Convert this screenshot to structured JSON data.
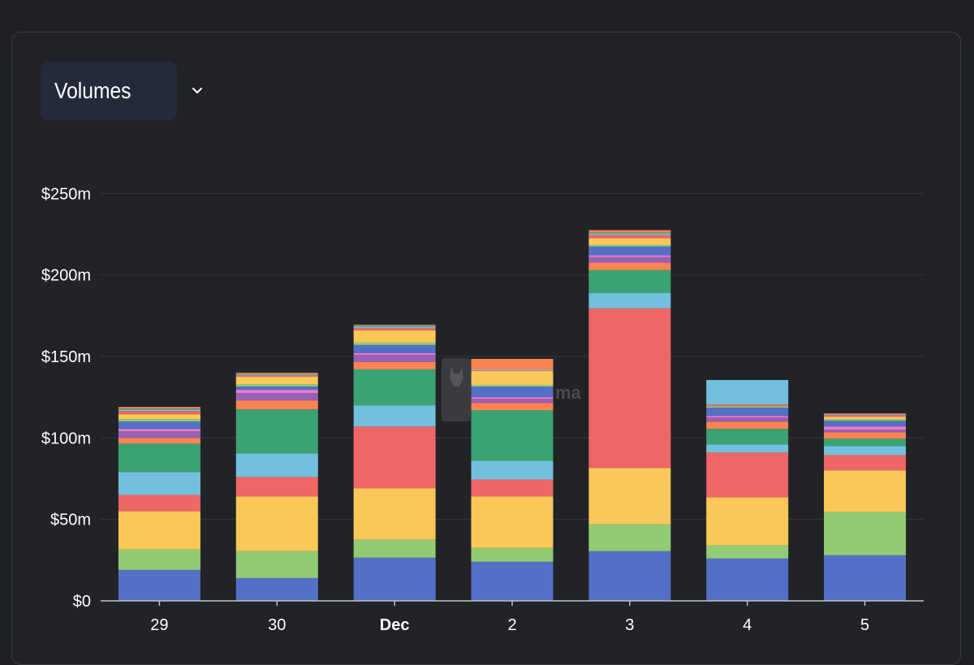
{
  "selector": {
    "label": "Volumes",
    "icon": "chevron-down-icon"
  },
  "watermark": {
    "text": "ma"
  },
  "chart_data": {
    "type": "bar",
    "stacked": true,
    "title": "",
    "xlabel": "",
    "ylabel": "",
    "categories": [
      "29",
      "30",
      "Dec",
      "2",
      "3",
      "4",
      "5"
    ],
    "bold_categories": [
      "Dec"
    ],
    "yticks": [
      "$0",
      "$50m",
      "$100m",
      "$150m",
      "$200m",
      "$250m"
    ],
    "ytick_values": [
      0,
      50,
      100,
      150,
      200,
      250
    ],
    "ylim": [
      0,
      265
    ],
    "grid": true,
    "colors": [
      "#5470c6",
      "#91cc75",
      "#fac858",
      "#ee6666",
      "#73c0de",
      "#3ba272",
      "#fc8452",
      "#9a60b4",
      "#ea7ccc",
      "#5470c6",
      "#91cc75",
      "#fac858",
      "#ee6666",
      "#73c0de",
      "#3ba272",
      "#fc8452"
    ],
    "series": [
      {
        "values": [
          19,
          14,
          26.5,
          24,
          30.5,
          26,
          28
        ]
      },
      {
        "values": [
          12.5,
          16.5,
          11,
          8.5,
          16.5,
          8,
          26.5
        ]
      },
      {
        "values": [
          23.5,
          33.5,
          31.5,
          31.5,
          34.5,
          29.5,
          25.5
        ]
      },
      {
        "values": [
          10,
          12,
          38,
          10.5,
          98,
          27.5,
          9.5
        ]
      },
      {
        "values": [
          14,
          14.5,
          13,
          11.5,
          9.5,
          5,
          5.5
        ]
      },
      {
        "values": [
          17.5,
          27,
          22,
          31,
          14,
          9.5,
          4.5
        ]
      },
      {
        "values": [
          3.5,
          5.5,
          4.5,
          4.5,
          4.5,
          4.5,
          4
        ]
      },
      {
        "values": [
          4,
          4.5,
          4.5,
          2.5,
          3.5,
          2.5,
          1.5
        ]
      },
      {
        "values": [
          1.5,
          2,
          1,
          1,
          1,
          1,
          2
        ]
      },
      {
        "values": [
          4.5,
          2,
          5,
          6.5,
          5.5,
          5,
          3.5
        ]
      },
      {
        "values": [
          1.5,
          1.5,
          1.5,
          1,
          1,
          1,
          1
        ]
      },
      {
        "values": [
          3,
          4.5,
          7.5,
          8.5,
          4,
          0,
          1.5
        ]
      },
      {
        "values": [
          2,
          1,
          1.5,
          0.5,
          2,
          1,
          1
        ]
      },
      {
        "values": [
          1,
          0.5,
          1,
          0.5,
          1,
          0,
          0.5
        ]
      },
      {
        "values": [
          0.5,
          0.5,
          0.5,
          0,
          0.5,
          0,
          0
        ]
      },
      {
        "values": [
          1,
          0.5,
          0.5,
          6.5,
          1.5,
          0,
          0.5
        ]
      },
      {
        "values": [
          0,
          0,
          0,
          0,
          0,
          15,
          0
        ]
      }
    ]
  }
}
